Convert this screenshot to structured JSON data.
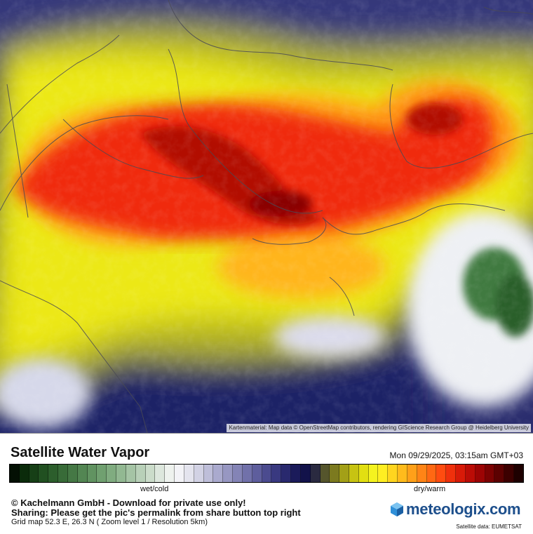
{
  "map": {
    "attribution": "Kartenmaterial: Map data © OpenStreetMap contributors, rendering GIScience Research Group @ Heidelberg University"
  },
  "panel": {
    "title": "Satellite Water Vapor",
    "datetime": "Mon 09/29/2025, 03:15am GMT+03",
    "legend_wet": "wet/cold",
    "legend_dry": "dry/warm",
    "copyright": "© Kachelmann GmbH - Download for private use only!",
    "sharing": "Sharing: Please get the pic's permalink from share button top right",
    "grid_info": "Grid map 52.3 E, 26.3 N ( Zoom level 1 / Resolution 5km)",
    "brand": "meteologix.com",
    "satellite_source": "Satellite data: EUMETSAT"
  },
  "colors": {
    "scale": [
      "#041004",
      "#0b2b0b",
      "#163f16",
      "#215021",
      "#2c5e2c",
      "#386b38",
      "#457845",
      "#538653",
      "#619361",
      "#70a070",
      "#80ac80",
      "#92b892",
      "#a5c4a5",
      "#b8d0b8",
      "#cbdcca",
      "#dde7dd",
      "#eef2ee",
      "#f3f3f7",
      "#e4e4ee",
      "#d2d2e4",
      "#bebed9",
      "#aaaace",
      "#9797c2",
      "#8484b6",
      "#7171aa",
      "#5e5e9d",
      "#4b4b8f",
      "#393980",
      "#29296e",
      "#1b1b5a",
      "#12124a",
      "#2a2a40",
      "#55552c",
      "#7c7a1f",
      "#a3a017",
      "#c7c312",
      "#e2df12",
      "#f5f31f",
      "#ffee22",
      "#ffd51f",
      "#ffbb1c",
      "#ffa019",
      "#ff8416",
      "#ff6813",
      "#ff4c10",
      "#f0300c",
      "#d81a08",
      "#bb0c06",
      "#9c0404",
      "#7c0202",
      "#5c0101",
      "#3c0000",
      "#1e0000"
    ]
  }
}
